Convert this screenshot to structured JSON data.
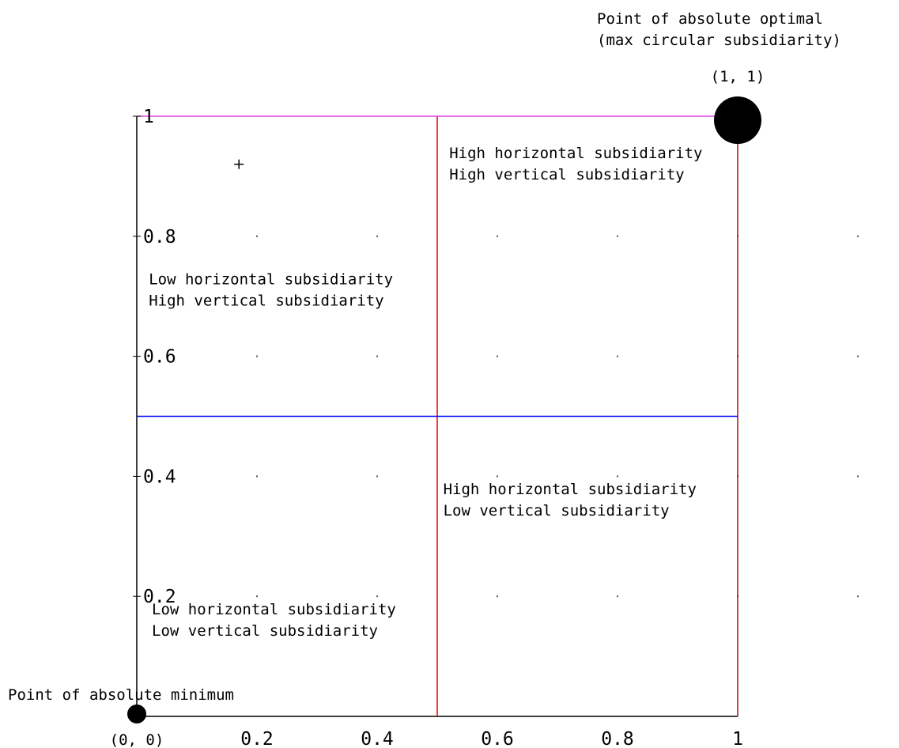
{
  "chart_data": {
    "type": "scatter",
    "xlim": [
      0,
      1
    ],
    "ylim": [
      0,
      1
    ],
    "grid": "dotted",
    "x_ticks": [
      {
        "value": 0.2,
        "label": "0.2"
      },
      {
        "value": 0.4,
        "label": "0.4"
      },
      {
        "value": 0.6,
        "label": "0.6"
      },
      {
        "value": 0.8,
        "label": "0.8"
      },
      {
        "value": 1.0,
        "label": "1"
      }
    ],
    "y_ticks": [
      {
        "value": 0.2,
        "label": "0.2"
      },
      {
        "value": 0.4,
        "label": "0.4"
      },
      {
        "value": 0.6,
        "label": "0.6"
      },
      {
        "value": 0.8,
        "label": "0.8"
      },
      {
        "value": 1.0,
        "label": "1"
      }
    ],
    "reference_lines": [
      {
        "orientation": "vertical",
        "value": 0.5,
        "color": "#e00000"
      },
      {
        "orientation": "vertical",
        "value": 1.0,
        "color": "#b01010"
      },
      {
        "orientation": "horizontal",
        "value": 0.5,
        "color": "#0000ff"
      },
      {
        "orientation": "horizontal",
        "value": 1.0,
        "color": "#e040e0"
      }
    ],
    "points": [
      {
        "x": 0,
        "y": 0,
        "size": "small",
        "label": "(0, 0)",
        "caption": [
          "Point of absolute minimum"
        ]
      },
      {
        "x": 1,
        "y": 1,
        "size": "large",
        "label": "(1, 1)",
        "caption": [
          "Point of absolute optimal",
          "(max circular subsidiarity)"
        ]
      }
    ],
    "markers": [
      {
        "x": 0.17,
        "y": 0.92,
        "symbol": "+"
      }
    ],
    "quadrant_labels": [
      {
        "x": 0.02,
        "y": 0.72,
        "lines": [
          "Low horizontal subsidiarity",
          "High vertical subsidiarity"
        ]
      },
      {
        "x": 0.52,
        "y": 0.93,
        "lines": [
          "High horizontal subsidiarity",
          "High vertical subsidiarity"
        ]
      },
      {
        "x": 0.51,
        "y": 0.37,
        "lines": [
          "High horizontal subsidiarity",
          "Low vertical subsidiarity"
        ]
      },
      {
        "x": 0.025,
        "y": 0.17,
        "lines": [
          "Low horizontal subsidiarity",
          "Low vertical subsidiarity"
        ]
      }
    ]
  },
  "colors": {
    "axis": "#000000",
    "grid_dot": "#555555",
    "point": "#000000"
  }
}
